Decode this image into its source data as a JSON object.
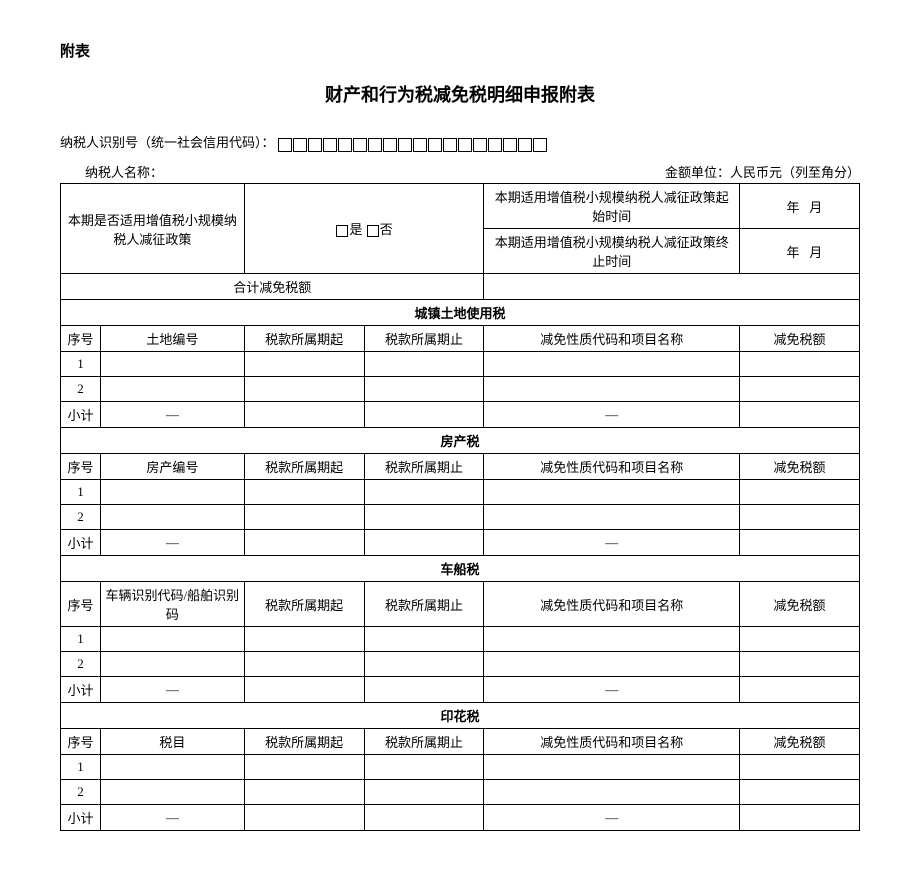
{
  "labels": {
    "attachment": "附表",
    "title": "财产和行为税减免税明细申报附表",
    "taxid_label": "纳税人识别号（统一社会信用代码）：",
    "name_label": "纳税人名称：",
    "unit_label": "金额单位：人民币元（列至角分）",
    "policy_q": "本期是否适用增值税小规模纳税人减征政策",
    "yes": "是",
    "no": "否",
    "policy_start": "本期适用增值税小规模纳税人减征政策起始时间",
    "policy_end": "本期适用增值税小规模纳税人减征政策终止时间",
    "year": "年",
    "month": "月",
    "total_exempt": "合计减免税额",
    "seq": "序号",
    "period_start": "税款所属期起",
    "period_end": "税款所属期止",
    "nature": "减免性质代码和项目名称",
    "amount": "减免税额",
    "subtotal": "小计",
    "dash": "—",
    "row1": "1",
    "row2": "2"
  },
  "sections": {
    "land": {
      "title": "城镇土地使用税",
      "id_col": "土地编号"
    },
    "house": {
      "title": "房产税",
      "id_col": "房产编号"
    },
    "vehicle": {
      "title": "车船税",
      "id_col": "车辆识别代码/船舶识别码"
    },
    "stamp": {
      "title": "印花税",
      "id_col": "税目"
    }
  },
  "style": {
    "id_box_count": 18
  }
}
